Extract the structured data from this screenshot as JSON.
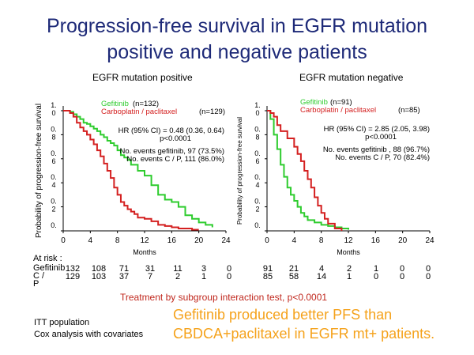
{
  "title": {
    "line1": "Progression-free survival in EGFR mutation",
    "line2": "positive and negative patients"
  },
  "chart_data": [
    {
      "type": "line",
      "panel_title": "EGFR mutation positive",
      "ylabel": "Probability of progression-free survival",
      "xlabel": "Months",
      "xlim": [
        0,
        24
      ],
      "ylim": [
        0,
        1.0
      ],
      "xticks": [
        "0",
        "4",
        "8",
        "12",
        "16",
        "20",
        "24"
      ],
      "yticks": [
        "0.",
        "0.\n2",
        "0.\n4",
        "0.\n6",
        "0.\n8",
        "1.\n0"
      ],
      "series": [
        {
          "name": "Gefitinib",
          "n_label": "(n=132)",
          "color": "#2ecc2e",
          "x": [
            0,
            1,
            1.5,
            2,
            2.5,
            3,
            3.5,
            4,
            4.5,
            5,
            5.5,
            6,
            6.5,
            7,
            7.5,
            8,
            8.5,
            9,
            9.5,
            10,
            11,
            12,
            13,
            14,
            15,
            16,
            17,
            18,
            19,
            20,
            21,
            22
          ],
          "y": [
            1.0,
            0.99,
            0.97,
            0.95,
            0.93,
            0.9,
            0.89,
            0.87,
            0.85,
            0.83,
            0.8,
            0.78,
            0.75,
            0.73,
            0.71,
            0.67,
            0.63,
            0.61,
            0.59,
            0.55,
            0.5,
            0.46,
            0.38,
            0.3,
            0.26,
            0.24,
            0.2,
            0.13,
            0.1,
            0.07,
            0.05,
            0.03
          ]
        },
        {
          "name": "Carboplatin / paclitaxel",
          "n_label": "(n=129)",
          "color": "#d42020",
          "x": [
            0,
            1,
            1.5,
            2,
            2.5,
            3,
            3.5,
            4,
            4.5,
            5,
            5.5,
            6,
            6.5,
            7,
            7.5,
            8,
            8.5,
            9,
            9.5,
            10,
            10.5,
            11,
            12,
            13,
            14,
            15,
            16,
            17,
            18,
            19,
            20
          ],
          "y": [
            1.0,
            0.98,
            0.95,
            0.9,
            0.86,
            0.83,
            0.8,
            0.76,
            0.72,
            0.67,
            0.62,
            0.56,
            0.5,
            0.44,
            0.36,
            0.3,
            0.24,
            0.21,
            0.18,
            0.16,
            0.14,
            0.11,
            0.1,
            0.08,
            0.05,
            0.04,
            0.03,
            0.02,
            0.02,
            0.01,
            0.01
          ]
        }
      ],
      "annotations": {
        "hr": "HR (95% CI) = 0.48 (0.36, 0.64)",
        "p": "p<0.0001",
        "events1": "No. events gefitinib, 97 (73.5%)",
        "events2": "No. events C / P, 111 (86.0%)"
      },
      "at_risk": {
        "gefitinib": [
          "132",
          "108",
          "71",
          "31",
          "11",
          "3",
          "0"
        ],
        "cp": [
          "129",
          "103",
          "37",
          "7",
          "2",
          "1",
          "0"
        ]
      }
    },
    {
      "type": "line",
      "panel_title": "EGFR mutation negative",
      "ylabel": "Probability of progression-free survival",
      "xlabel": "Months",
      "xlim": [
        0,
        24
      ],
      "ylim": [
        0,
        1.0
      ],
      "xticks": [
        "0",
        "4",
        "8",
        "12",
        "16",
        "20",
        "24"
      ],
      "yticks": [
        "0.",
        "0.\n2",
        "0.\n4",
        "0.\n6",
        "0.\n8",
        "1.\n0"
      ],
      "series": [
        {
          "name": "Gefitinib",
          "n_label": "(n=91)",
          "color": "#2ecc2e",
          "x": [
            0,
            0.5,
            1,
            1.5,
            2,
            2.5,
            3,
            3.5,
            4,
            4.5,
            5,
            5.5,
            6,
            7,
            8,
            9,
            10,
            11,
            12
          ],
          "y": [
            1.0,
            0.93,
            0.8,
            0.68,
            0.55,
            0.45,
            0.36,
            0.3,
            0.25,
            0.2,
            0.15,
            0.12,
            0.09,
            0.07,
            0.05,
            0.04,
            0.03,
            0.02,
            0.01
          ]
        },
        {
          "name": "Carboplatin / paclitaxel",
          "n_label": "(n=85)",
          "color": "#d42020",
          "x": [
            0,
            0.5,
            1,
            1.5,
            2,
            3,
            4,
            4.5,
            5,
            5.5,
            6,
            6.5,
            7,
            7.5,
            8,
            8.5,
            9,
            10,
            11
          ],
          "y": [
            1.0,
            0.98,
            0.95,
            0.88,
            0.83,
            0.77,
            0.7,
            0.64,
            0.58,
            0.5,
            0.43,
            0.36,
            0.28,
            0.21,
            0.15,
            0.1,
            0.06,
            0.02,
            0.0
          ]
        }
      ],
      "annotations": {
        "hr": "HR (95% CI) = 2.85 (2.05, 3.98)",
        "p": "p<0.0001",
        "events1": "No. events gefitinib , 88 (96.7%)",
        "events2": "No. events C / P, 70 (82.4%)"
      },
      "at_risk": {
        "gefitinib": [
          "91",
          "21",
          "4",
          "2",
          "1",
          "0",
          "0"
        ],
        "cp": [
          "85",
          "58",
          "14",
          "1",
          "0",
          "0",
          "0"
        ]
      }
    }
  ],
  "at_risk_labels": {
    "header": "At risk :",
    "gefitinib": "Gefitinib",
    "cp_line1": "C /",
    "cp_line2": "P"
  },
  "interaction_text": "Treatment by subgroup interaction test, p<0.0001",
  "footer": {
    "line1": "ITT population",
    "line2": "Cox analysis with covariates"
  },
  "conclusion": {
    "line1": "Gefitinib produced better PFS than",
    "line2": "CBDCA+paclitaxel in EGFR mt+ patients."
  }
}
